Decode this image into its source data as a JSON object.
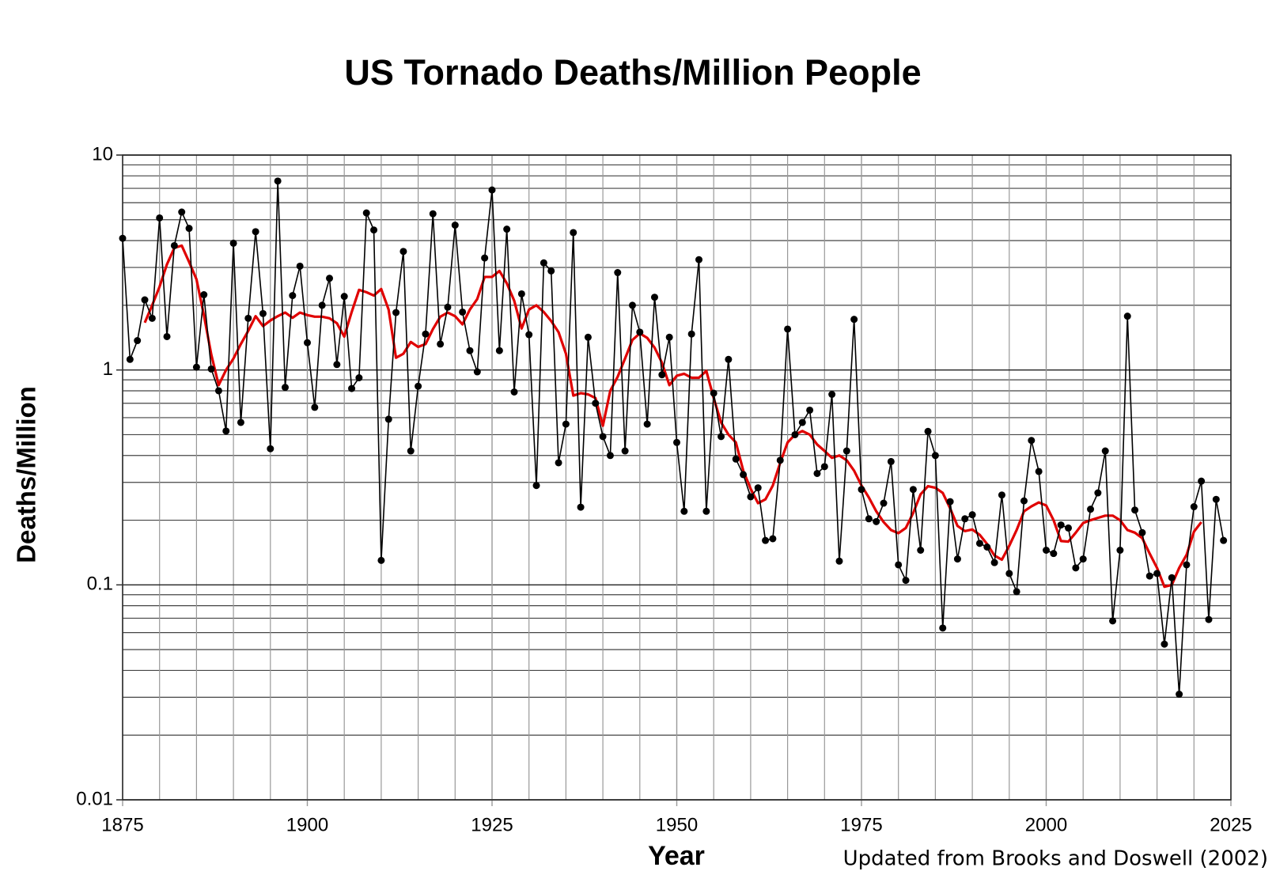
{
  "chart_data": {
    "type": "line",
    "title": "US Tornado Deaths/Million People",
    "x_label": "Year",
    "y_label": "Deaths/Million",
    "annotation": "Updated from Brooks and Doswell (2002)",
    "log_scale_y": true,
    "grid": true,
    "xlim": [
      1875,
      2025
    ],
    "xticks": [
      1875,
      1900,
      1925,
      1950,
      1975,
      2000,
      2025
    ],
    "ylim": [
      0.01,
      10
    ],
    "yticks": [
      0.01,
      0.1,
      1,
      10
    ],
    "x": [
      1875,
      1876,
      1877,
      1878,
      1879,
      1880,
      1881,
      1882,
      1883,
      1884,
      1885,
      1886,
      1887,
      1888,
      1889,
      1890,
      1891,
      1892,
      1893,
      1894,
      1895,
      1896,
      1897,
      1898,
      1899,
      1900,
      1901,
      1902,
      1903,
      1904,
      1905,
      1906,
      1907,
      1908,
      1909,
      1910,
      1911,
      1912,
      1913,
      1914,
      1915,
      1916,
      1917,
      1918,
      1919,
      1920,
      1921,
      1922,
      1923,
      1924,
      1925,
      1926,
      1927,
      1928,
      1929,
      1930,
      1931,
      1932,
      1933,
      1934,
      1935,
      1936,
      1937,
      1938,
      1939,
      1940,
      1941,
      1942,
      1943,
      1944,
      1945,
      1946,
      1947,
      1948,
      1949,
      1950,
      1951,
      1952,
      1953,
      1954,
      1955,
      1956,
      1957,
      1958,
      1959,
      1960,
      1961,
      1962,
      1963,
      1964,
      1965,
      1966,
      1967,
      1968,
      1969,
      1970,
      1971,
      1972,
      1973,
      1974,
      1975,
      1976,
      1977,
      1978,
      1979,
      1980,
      1981,
      1982,
      1983,
      1984,
      1985,
      1986,
      1987,
      1988,
      1989,
      1990,
      1991,
      1992,
      1993,
      1994,
      1995,
      1996,
      1997,
      1998,
      1999,
      2000,
      2001,
      2002,
      2003,
      2004,
      2005,
      2006,
      2007,
      2008,
      2009,
      2010,
      2011,
      2012,
      2013,
      2014,
      2015,
      2016,
      2017,
      2018,
      2019,
      2020,
      2021,
      2022,
      2023,
      2024
    ],
    "series": [
      {
        "color": "#000000",
        "markers": true,
        "values": [
          4.1,
          1.12,
          1.37,
          2.12,
          1.74,
          5.1,
          1.43,
          3.79,
          5.43,
          4.56,
          1.03,
          2.24,
          1.01,
          0.8,
          0.52,
          3.89,
          0.57,
          1.74,
          4.4,
          1.83,
          0.43,
          7.57,
          0.83,
          2.22,
          3.04,
          1.34,
          0.67,
          2.0,
          2.67,
          1.06,
          2.2,
          0.82,
          0.92,
          5.38,
          4.48,
          0.13,
          0.59,
          1.85,
          3.56,
          0.42,
          0.84,
          1.47,
          5.33,
          1.32,
          1.96,
          4.72,
          1.86,
          1.23,
          0.98,
          3.32,
          6.88,
          1.23,
          4.52,
          0.79,
          2.26,
          1.46,
          0.29,
          3.15,
          2.89,
          0.37,
          0.56,
          4.36,
          0.23,
          1.42,
          0.7,
          0.49,
          0.4,
          2.84,
          0.42,
          2.0,
          1.5,
          0.56,
          2.18,
          0.95,
          1.42,
          0.46,
          0.22,
          1.47,
          3.26,
          0.22,
          0.78,
          0.49,
          1.12,
          0.385,
          0.326,
          0.257,
          0.283,
          0.161,
          0.164,
          0.38,
          1.55,
          0.5,
          0.57,
          0.65,
          0.33,
          0.355,
          0.77,
          0.129,
          0.42,
          1.72,
          0.278,
          0.203,
          0.197,
          0.24,
          0.375,
          0.124,
          0.105,
          0.278,
          0.145,
          0.518,
          0.4,
          0.063,
          0.244,
          0.132,
          0.203,
          0.212,
          0.156,
          0.15,
          0.127,
          0.262,
          0.113,
          0.093,
          0.246,
          0.47,
          0.337,
          0.145,
          0.14,
          0.19,
          0.184,
          0.12,
          0.132,
          0.225,
          0.268,
          0.42,
          0.068,
          0.145,
          1.78,
          0.223,
          0.175,
          0.11,
          0.113,
          0.053,
          0.108,
          0.031,
          0.124,
          0.231,
          0.304,
          0.069,
          0.25,
          0.161
        ]
      },
      {
        "color": "#e00000",
        "markers": false,
        "values": [
          null,
          null,
          null,
          1.66,
          2.0,
          2.44,
          3.1,
          3.7,
          3.79,
          3.18,
          2.64,
          1.8,
          1.18,
          0.85,
          1.0,
          1.13,
          1.32,
          1.52,
          1.78,
          1.6,
          1.7,
          1.78,
          1.85,
          1.75,
          1.85,
          1.8,
          1.77,
          1.77,
          1.74,
          1.65,
          1.43,
          1.86,
          2.36,
          2.3,
          2.22,
          2.38,
          1.91,
          1.14,
          1.19,
          1.35,
          1.28,
          1.32,
          1.55,
          1.77,
          1.85,
          1.78,
          1.63,
          1.91,
          2.14,
          2.71,
          2.71,
          2.89,
          2.53,
          2.1,
          1.56,
          1.91,
          2.0,
          1.86,
          1.69,
          1.5,
          1.19,
          0.76,
          0.78,
          0.77,
          0.74,
          0.55,
          0.8,
          0.93,
          1.13,
          1.38,
          1.48,
          1.41,
          1.27,
          1.08,
          0.85,
          0.94,
          0.96,
          0.92,
          0.92,
          0.99,
          0.74,
          0.57,
          0.5,
          0.46,
          0.34,
          0.28,
          0.24,
          0.25,
          0.29,
          0.37,
          0.46,
          0.5,
          0.52,
          0.5,
          0.45,
          0.42,
          0.39,
          0.4,
          0.38,
          0.34,
          0.29,
          0.255,
          0.22,
          0.196,
          0.18,
          0.174,
          0.184,
          0.216,
          0.264,
          0.288,
          0.283,
          0.268,
          0.227,
          0.188,
          0.178,
          0.181,
          0.171,
          0.155,
          0.137,
          0.131,
          0.152,
          0.18,
          0.22,
          0.232,
          0.242,
          0.234,
          0.2,
          0.16,
          0.159,
          0.175,
          0.194,
          0.2,
          0.205,
          0.21,
          0.21,
          0.2,
          0.18,
          0.175,
          0.165,
          0.14,
          0.12,
          0.098,
          0.1,
          0.12,
          0.138,
          0.177,
          0.196,
          null,
          null,
          null
        ]
      }
    ]
  }
}
